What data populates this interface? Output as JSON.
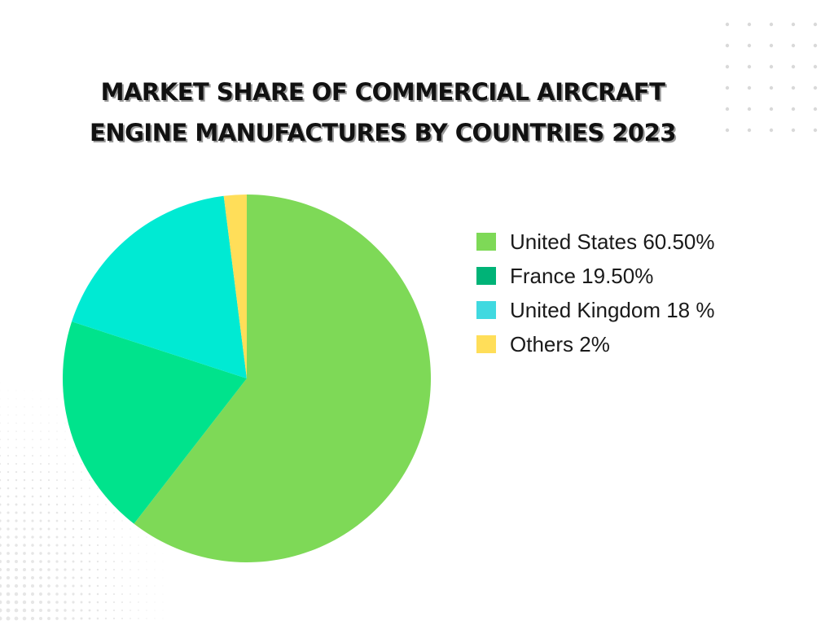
{
  "title": {
    "line1": "MARKET SHARE OF COMMERCIAL AIRCRAFT",
    "line2": "ENGINE MANUFACTURES BY COUNTRIES 2023"
  },
  "chart_data": {
    "type": "pie",
    "title": "MARKET SHARE OF COMMERCIAL AIRCRAFT ENGINE MANUFACTURES BY COUNTRIES 2023",
    "legend_position": "right",
    "slices": [
      {
        "label": "United States",
        "value": 60.5,
        "color": "#7ed957",
        "legend_text": "United States 60.50%",
        "legend_color": "#7ed957"
      },
      {
        "label": "France",
        "value": 19.5,
        "color": "#00e38c",
        "legend_text": "France 19.50%",
        "legend_color": "#00b377"
      },
      {
        "label": "United Kingdom",
        "value": 18,
        "color": "#00ead3",
        "legend_text": "United Kingdom 18 %",
        "legend_color": "#40d9e0"
      },
      {
        "label": "Others",
        "value": 2,
        "color": "#ffde59",
        "legend_text": "Others 2%",
        "legend_color": "#ffde59"
      }
    ]
  },
  "decoration": {
    "dot_color": "#d9d9d9"
  }
}
